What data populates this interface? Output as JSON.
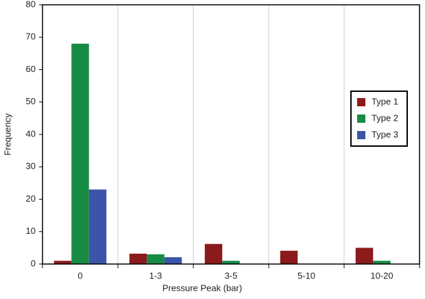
{
  "chart_data": {
    "type": "bar",
    "x_label": "Pressure Peak (bar)",
    "y_label": "Frequency",
    "categories": [
      "0",
      "1-3",
      "3-5",
      "5-10",
      "10-20"
    ],
    "series": [
      {
        "name": "Type 1",
        "color": "#8b1a1a",
        "values": [
          1,
          3.2,
          6.2,
          4.1,
          5
        ]
      },
      {
        "name": "Type 2",
        "color": "#178a45",
        "values": [
          68,
          3,
          1,
          0,
          1
        ]
      },
      {
        "name": "Type 3",
        "color": "#3a55a8",
        "values": [
          23,
          2.1,
          0,
          0,
          0
        ]
      }
    ],
    "ylim": [
      0,
      80
    ],
    "yticks": [
      0,
      10,
      20,
      30,
      40,
      50,
      60,
      70,
      80
    ],
    "grid": true,
    "legend": "right"
  }
}
